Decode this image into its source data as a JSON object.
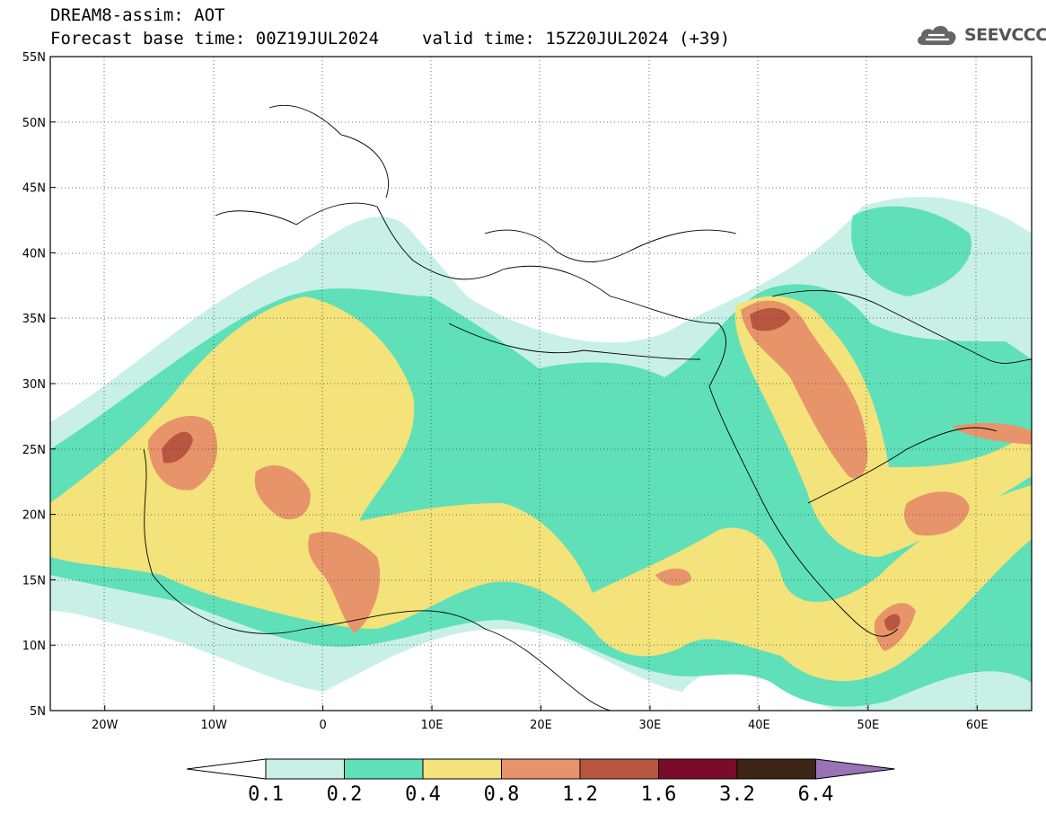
{
  "header": {
    "title": "DREAM8-assim: AOT",
    "base_time": "Forecast base time: 00Z19JUL2024",
    "valid_time": "valid time: 15Z20JUL2024 (+39)"
  },
  "logo": {
    "text": "SEEVCCC",
    "icon": "cloud-icon"
  },
  "map": {
    "lat_range": [
      5,
      55
    ],
    "lon_range": [
      -25,
      65
    ],
    "lat_labels": [
      "55N",
      "50N",
      "45N",
      "40N",
      "35N",
      "30N",
      "25N",
      "20N",
      "15N",
      "10N",
      "5N"
    ],
    "lon_labels": [
      "20W",
      "10W",
      "0",
      "10E",
      "20E",
      "30E",
      "40E",
      "50E",
      "60E"
    ],
    "variable": "AOT"
  },
  "colorbar": {
    "labels": [
      "0.1",
      "0.2",
      "0.4",
      "0.8",
      "1.2",
      "1.6",
      "3.2",
      "6.4"
    ],
    "colors": [
      "#ffffff",
      "#c8f0e6",
      "#5fe0b9",
      "#f4e27a",
      "#e8946a",
      "#b85640",
      "#7b0b2b",
      "#3d2415",
      "#9a72b6"
    ]
  }
}
